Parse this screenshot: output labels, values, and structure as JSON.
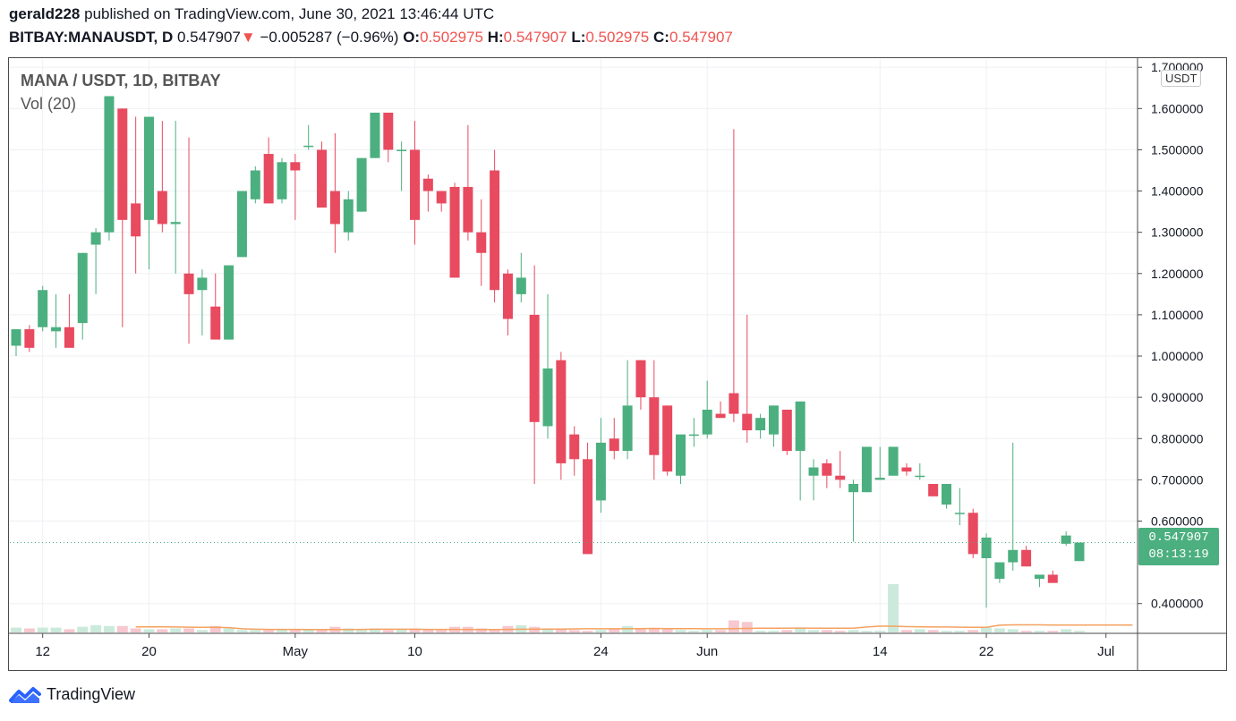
{
  "header": {
    "publisher": "gerald228",
    "published_text": "published on TradingView.com, June 30, 2021 13:46:44 UTC",
    "symbol": "BITBAY:MANAUSDT, D",
    "last": "0.547907",
    "change": "−0.005287 (−0.96%)",
    "o_label": "O:",
    "o_value": "0.502975",
    "h_label": "H:",
    "h_value": "0.547907",
    "l_label": "L:",
    "l_value": "0.502975",
    "c_label": "C:",
    "c_value": "0.547907"
  },
  "legend": {
    "title": "MANA / USDT, 1D, BITBAY",
    "volume": "Vol (20)"
  },
  "axis": {
    "currency_badge": "USDT"
  },
  "price_tag": {
    "price": "0.547907",
    "countdown": "08:13:19"
  },
  "footer": {
    "brand": "TradingView"
  },
  "colors": {
    "up": "#4caf7f",
    "down": "#e84a5f",
    "up_vol": "#cbeadb",
    "down_vol": "#f7c8cf",
    "ma": "#f4a261",
    "grid": "#eef0f3"
  },
  "chart_data": {
    "type": "candlestick",
    "ylim": [
      0.33,
      1.72
    ],
    "y_ticks": [
      "1.700000",
      "1.600000",
      "1.500000",
      "1.400000",
      "1.300000",
      "1.200000",
      "1.100000",
      "1.000000",
      "0.900000",
      "0.800000",
      "0.700000",
      "0.600000",
      "0.400000"
    ],
    "x_ticks": [
      {
        "label": "12",
        "index": 2
      },
      {
        "label": "20",
        "index": 10
      },
      {
        "label": "May",
        "index": 21
      },
      {
        "label": "10",
        "index": 30
      },
      {
        "label": "24",
        "index": 44
      },
      {
        "label": "Jun",
        "index": 52
      },
      {
        "label": "14",
        "index": 65
      },
      {
        "label": "22",
        "index": 73
      },
      {
        "label": "Jul",
        "index": 82
      }
    ],
    "last_price": 0.547907,
    "candles": [
      [
        1.025,
        1.065,
        1.0,
        1.06,
        3
      ],
      [
        1.065,
        1.02,
        1.01,
        1.075,
        2.5
      ],
      [
        1.07,
        1.16,
        1.06,
        1.17,
        3
      ],
      [
        1.06,
        1.07,
        1.02,
        1.15,
        3
      ],
      [
        1.07,
        1.02,
        1.02,
        1.15,
        2
      ],
      [
        1.08,
        1.25,
        1.04,
        1.25,
        3.5
      ],
      [
        1.27,
        1.3,
        1.15,
        1.31,
        4.5
      ],
      [
        1.3,
        1.63,
        1.28,
        1.63,
        4
      ],
      [
        1.6,
        1.33,
        1.07,
        1.6,
        4
      ],
      [
        1.37,
        1.29,
        1.2,
        1.58,
        2.5
      ],
      [
        1.33,
        1.58,
        1.21,
        1.58,
        2
      ],
      [
        1.4,
        1.32,
        1.3,
        1.57,
        2
      ],
      [
        1.32,
        1.325,
        1.2,
        1.57,
        2.5
      ],
      [
        1.2,
        1.15,
        1.03,
        1.53,
        2.5
      ],
      [
        1.16,
        1.19,
        1.05,
        1.21,
        1.5
      ],
      [
        1.12,
        1.04,
        1.04,
        1.2,
        4
      ],
      [
        1.04,
        1.22,
        1.04,
        1.22,
        2.5
      ],
      [
        1.24,
        1.4,
        1.24,
        1.4,
        1.5
      ],
      [
        1.38,
        1.45,
        1.37,
        1.46,
        1.5
      ],
      [
        1.49,
        1.37,
        1.37,
        1.53,
        1.5
      ],
      [
        1.38,
        1.47,
        1.37,
        1.48,
        2
      ],
      [
        1.47,
        1.45,
        1.33,
        1.49,
        2
      ],
      [
        1.51,
        1.51,
        1.5,
        1.56,
        1.5
      ],
      [
        1.5,
        1.36,
        1.36,
        1.52,
        1.5
      ],
      [
        1.4,
        1.32,
        1.25,
        1.54,
        3.5
      ],
      [
        1.3,
        1.38,
        1.28,
        1.4,
        2.5
      ],
      [
        1.35,
        1.48,
        1.35,
        1.48,
        1.5
      ],
      [
        1.48,
        1.59,
        1.48,
        1.59,
        2.5
      ],
      [
        1.59,
        1.5,
        1.47,
        1.59,
        1.5
      ],
      [
        1.5,
        1.5,
        1.4,
        1.52,
        2
      ],
      [
        1.5,
        1.33,
        1.27,
        1.57,
        2.5
      ],
      [
        1.43,
        1.4,
        1.35,
        1.44,
        2
      ],
      [
        1.4,
        1.37,
        1.35,
        1.4,
        1.5
      ],
      [
        1.41,
        1.19,
        1.19,
        1.42,
        3.5
      ],
      [
        1.41,
        1.3,
        1.28,
        1.56,
        3.5
      ],
      [
        1.3,
        1.25,
        1.17,
        1.38,
        2.5
      ],
      [
        1.45,
        1.16,
        1.13,
        1.5,
        2
      ],
      [
        1.2,
        1.09,
        1.05,
        1.21,
        4
      ],
      [
        1.15,
        1.19,
        1.13,
        1.25,
        4.5
      ],
      [
        1.1,
        0.84,
        0.69,
        1.22,
        3.5
      ],
      [
        0.83,
        0.97,
        0.8,
        1.15,
        2
      ],
      [
        0.99,
        0.74,
        0.7,
        1.01,
        2.5
      ],
      [
        0.81,
        0.75,
        0.71,
        0.83,
        1.5
      ],
      [
        0.75,
        0.52,
        0.52,
        0.79,
        1
      ],
      [
        0.65,
        0.79,
        0.62,
        0.85,
        1.5
      ],
      [
        0.8,
        0.77,
        0.75,
        0.85,
        2
      ],
      [
        0.77,
        0.88,
        0.75,
        0.99,
        4
      ],
      [
        0.99,
        0.9,
        0.87,
        0.99,
        2
      ],
      [
        0.9,
        0.76,
        0.7,
        0.99,
        2.5
      ],
      [
        0.88,
        0.72,
        0.71,
        0.88,
        2
      ],
      [
        0.71,
        0.81,
        0.69,
        0.81,
        1.5
      ],
      [
        0.81,
        0.81,
        0.78,
        0.85,
        1
      ],
      [
        0.81,
        0.87,
        0.8,
        0.94,
        1.5
      ],
      [
        0.86,
        0.85,
        0.85,
        0.89,
        1.5
      ],
      [
        0.91,
        0.86,
        0.84,
        1.55,
        7.5
      ],
      [
        0.86,
        0.82,
        0.79,
        1.1,
        6.5
      ],
      [
        0.82,
        0.85,
        0.8,
        0.86,
        1
      ],
      [
        0.81,
        0.88,
        0.78,
        0.88,
        1
      ],
      [
        0.87,
        0.77,
        0.76,
        0.87,
        1.5
      ],
      [
        0.77,
        0.89,
        0.65,
        0.89,
        2.5
      ],
      [
        0.71,
        0.73,
        0.65,
        0.75,
        1.5
      ],
      [
        0.74,
        0.71,
        0.68,
        0.75,
        1.5
      ],
      [
        0.71,
        0.7,
        0.68,
        0.77,
        1
      ],
      [
        0.67,
        0.69,
        0.55,
        0.7,
        1.5
      ],
      [
        0.67,
        0.78,
        0.67,
        0.78,
        1
      ],
      [
        0.7,
        0.705,
        0.7,
        0.78,
        1
      ],
      [
        0.71,
        0.78,
        0.71,
        0.78,
        30
      ],
      [
        0.73,
        0.72,
        0.71,
        0.74,
        1.5
      ],
      [
        0.71,
        0.71,
        0.7,
        0.74,
        2
      ],
      [
        0.69,
        0.66,
        0.66,
        0.69,
        1.5
      ],
      [
        0.64,
        0.69,
        0.63,
        0.69,
        1
      ],
      [
        0.62,
        0.62,
        0.59,
        0.68,
        1
      ],
      [
        0.62,
        0.52,
        0.51,
        0.63,
        1.5
      ],
      [
        0.51,
        0.56,
        0.39,
        0.57,
        3
      ],
      [
        0.46,
        0.5,
        0.45,
        0.5,
        2.5
      ],
      [
        0.5,
        0.53,
        0.48,
        0.79,
        2
      ],
      [
        0.53,
        0.49,
        0.49,
        0.54,
        1
      ],
      [
        0.46,
        0.47,
        0.44,
        0.47,
        1
      ],
      [
        0.47,
        0.45,
        0.45,
        0.48,
        1
      ],
      [
        0.545,
        0.565,
        0.54,
        0.575,
        2
      ],
      [
        0.503,
        0.548,
        0.503,
        0.548,
        1
      ]
    ],
    "volume_ma": [
      3.5,
      3.5,
      3.5,
      3.4,
      3.3,
      3.2,
      3.2,
      3.0,
      2.3,
      2.0,
      1.9,
      1.9,
      1.9,
      1.8,
      1.8,
      1.8,
      1.8,
      1.9,
      2.0,
      2.0,
      2.0,
      2.0,
      1.9,
      1.9,
      1.9,
      1.8,
      1.8,
      1.8,
      1.9,
      2.0,
      2.0,
      2.1,
      2.1,
      2.2,
      2.3,
      2.3,
      2.3,
      2.3,
      2.4,
      2.5,
      2.4,
      2.4,
      2.4,
      2.3,
      2.3,
      2.4,
      2.5,
      2.6,
      2.6,
      2.6,
      2.7,
      2.6,
      2.6,
      2.6,
      2.6,
      3.4,
      3.9,
      3.9,
      3.6,
      3.5,
      3.4,
      3.4,
      3.3,
      3.2,
      3.2,
      4.5,
      4.7,
      4.7,
      4.7,
      4.6,
      4.6,
      4.6,
      4.6,
      4.6,
      4.6,
      4.6,
      4.6,
      3.6,
      3.5,
      3.5,
      3.5
    ]
  }
}
